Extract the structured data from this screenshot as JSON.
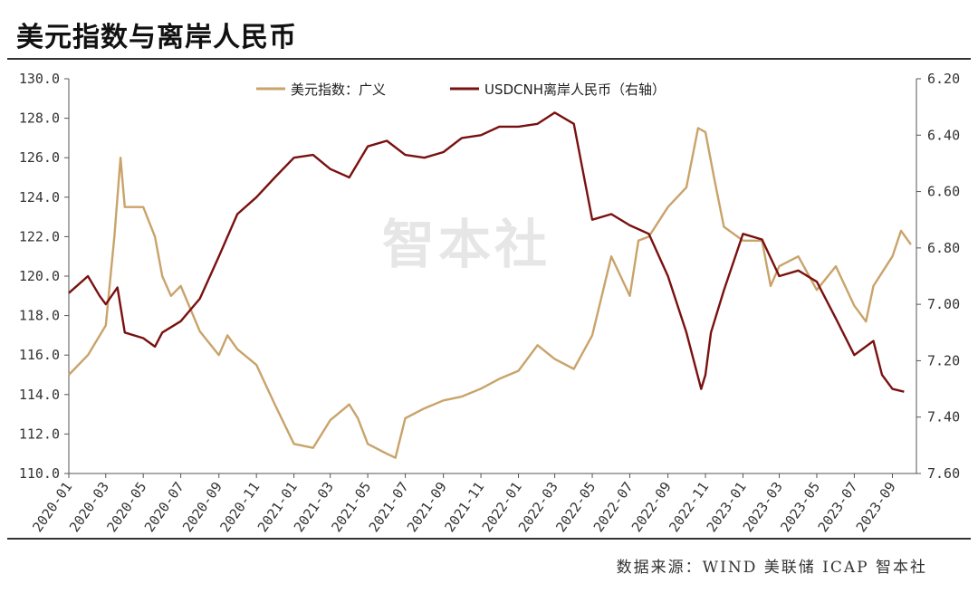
{
  "title": "美元指数与离岸人民币",
  "source": "数据来源：WIND 美联储 ICAP 智本社",
  "watermark": "智本社",
  "chart_data": {
    "type": "line",
    "xlabel": "",
    "left_axis": {
      "min": 110,
      "max": 130,
      "ticks": [
        "110.0",
        "112.0",
        "114.0",
        "116.0",
        "118.0",
        "120.0",
        "122.0",
        "124.0",
        "126.0",
        "128.0",
        "130.0"
      ]
    },
    "right_axis": {
      "min": 6.2,
      "max": 7.6,
      "inverted": true,
      "ticks": [
        "6.20",
        "6.40",
        "6.60",
        "6.80",
        "7.00",
        "7.20",
        "7.40",
        "7.60"
      ]
    },
    "x_ticks": [
      "2020-01",
      "2020-03",
      "2020-05",
      "2020-07",
      "2020-09",
      "2020-11",
      "2021-01",
      "2021-03",
      "2021-05",
      "2021-07",
      "2021-09",
      "2021-11",
      "2022-01",
      "2022-03",
      "2022-05",
      "2022-07",
      "2022-09",
      "2022-11",
      "2023-01",
      "2023-03",
      "2023-05",
      "2023-07",
      "2023-09"
    ],
    "legend_position": "top-center",
    "series": [
      {
        "name": "美元指数：广义",
        "axis": "left",
        "color": "#c9a36a",
        "points": [
          [
            "2020-01",
            115.0
          ],
          [
            "2020-02",
            116.0
          ],
          [
            "2020-03",
            117.5
          ],
          [
            "2020-03-15",
            122.0
          ],
          [
            "2020-03-25",
            126.0
          ],
          [
            "2020-04",
            123.5
          ],
          [
            "2020-05",
            123.5
          ],
          [
            "2020-05-20",
            122.0
          ],
          [
            "2020-06",
            120.0
          ],
          [
            "2020-06-15",
            119.0
          ],
          [
            "2020-07",
            119.5
          ],
          [
            "2020-08",
            117.2
          ],
          [
            "2020-09",
            116.0
          ],
          [
            "2020-09-15",
            117.0
          ],
          [
            "2020-10",
            116.3
          ],
          [
            "2020-11",
            115.5
          ],
          [
            "2020-12",
            113.5
          ],
          [
            "2021-01",
            111.5
          ],
          [
            "2021-02",
            111.3
          ],
          [
            "2021-03",
            112.7
          ],
          [
            "2021-04",
            113.5
          ],
          [
            "2021-04-15",
            112.8
          ],
          [
            "2021-05",
            111.5
          ],
          [
            "2021-06",
            111.0
          ],
          [
            "2021-06-15",
            110.8
          ],
          [
            "2021-07",
            112.8
          ],
          [
            "2021-08",
            113.3
          ],
          [
            "2021-09",
            113.7
          ],
          [
            "2021-10",
            113.9
          ],
          [
            "2021-11",
            114.3
          ],
          [
            "2021-12",
            114.8
          ],
          [
            "2022-01",
            115.2
          ],
          [
            "2022-02",
            116.5
          ],
          [
            "2022-03",
            115.8
          ],
          [
            "2022-04",
            115.3
          ],
          [
            "2022-05",
            117.0
          ],
          [
            "2022-06",
            121.0
          ],
          [
            "2022-07",
            119.0
          ],
          [
            "2022-07-15",
            121.8
          ],
          [
            "2022-08",
            122.0
          ],
          [
            "2022-09",
            123.5
          ],
          [
            "2022-10",
            124.5
          ],
          [
            "2022-10-20",
            127.5
          ],
          [
            "2022-11",
            127.3
          ],
          [
            "2022-11-15",
            125.0
          ],
          [
            "2022-12",
            122.5
          ],
          [
            "2023-01",
            121.8
          ],
          [
            "2023-02",
            121.8
          ],
          [
            "2023-02-15",
            119.5
          ],
          [
            "2023-03",
            120.5
          ],
          [
            "2023-04",
            121.0
          ],
          [
            "2023-05",
            119.3
          ],
          [
            "2023-06",
            120.5
          ],
          [
            "2023-07",
            118.5
          ],
          [
            "2023-07-20",
            117.7
          ],
          [
            "2023-08",
            119.5
          ],
          [
            "2023-09",
            121.0
          ],
          [
            "2023-09-15",
            122.3
          ],
          [
            "2023-10",
            121.6
          ]
        ]
      },
      {
        "name": "USDCNH离岸人民币（右轴）",
        "axis": "right",
        "color": "#7a1010",
        "points": [
          [
            "2020-01",
            6.96
          ],
          [
            "2020-02",
            6.9
          ],
          [
            "2020-02-20",
            6.97
          ],
          [
            "2020-03",
            7.0
          ],
          [
            "2020-03-20",
            6.94
          ],
          [
            "2020-04",
            7.1
          ],
          [
            "2020-05",
            7.12
          ],
          [
            "2020-05-20",
            7.15
          ],
          [
            "2020-06",
            7.1
          ],
          [
            "2020-07",
            7.06
          ],
          [
            "2020-08",
            6.98
          ],
          [
            "2020-09",
            6.83
          ],
          [
            "2020-10",
            6.68
          ],
          [
            "2020-11",
            6.62
          ],
          [
            "2020-12",
            6.55
          ],
          [
            "2021-01",
            6.48
          ],
          [
            "2021-02",
            6.47
          ],
          [
            "2021-03",
            6.52
          ],
          [
            "2021-04",
            6.55
          ],
          [
            "2021-05",
            6.44
          ],
          [
            "2021-06",
            6.42
          ],
          [
            "2021-07",
            6.47
          ],
          [
            "2021-08",
            6.48
          ],
          [
            "2021-09",
            6.46
          ],
          [
            "2021-10",
            6.41
          ],
          [
            "2021-11",
            6.4
          ],
          [
            "2021-12",
            6.37
          ],
          [
            "2022-01",
            6.37
          ],
          [
            "2022-02",
            6.36
          ],
          [
            "2022-03",
            6.32
          ],
          [
            "2022-04",
            6.36
          ],
          [
            "2022-05",
            6.7
          ],
          [
            "2022-06",
            6.68
          ],
          [
            "2022-07",
            6.72
          ],
          [
            "2022-08",
            6.75
          ],
          [
            "2022-09",
            6.9
          ],
          [
            "2022-10",
            7.1
          ],
          [
            "2022-10-25",
            7.3
          ],
          [
            "2022-11",
            7.25
          ],
          [
            "2022-11-10",
            7.1
          ],
          [
            "2022-12",
            6.95
          ],
          [
            "2023-01",
            6.75
          ],
          [
            "2023-02",
            6.77
          ],
          [
            "2023-03",
            6.9
          ],
          [
            "2023-04",
            6.88
          ],
          [
            "2023-05",
            6.92
          ],
          [
            "2023-06",
            7.05
          ],
          [
            "2023-07",
            7.18
          ],
          [
            "2023-08",
            7.13
          ],
          [
            "2023-08-15",
            7.25
          ],
          [
            "2023-09",
            7.3
          ],
          [
            "2023-09-20",
            7.31
          ]
        ]
      }
    ]
  }
}
